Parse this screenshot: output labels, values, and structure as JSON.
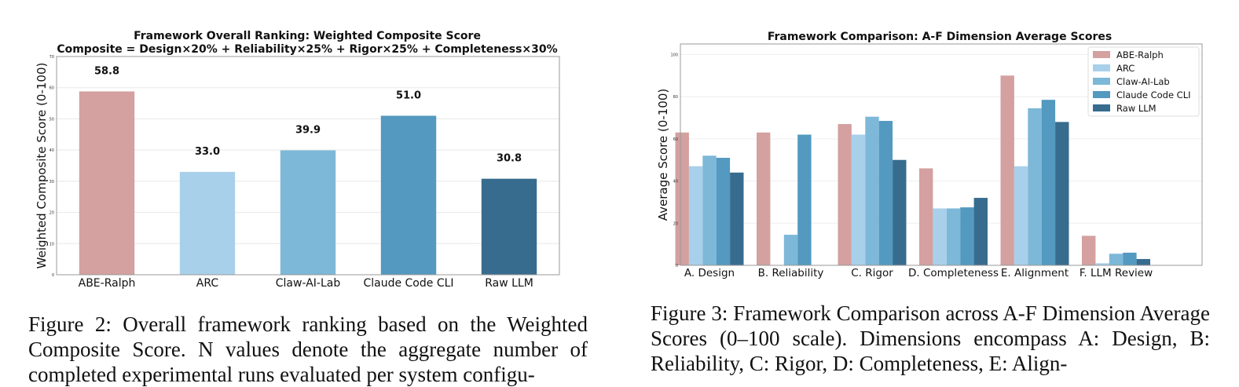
{
  "chart_data": [
    {
      "type": "bar",
      "title": "Framework Overall Ranking: Weighted Composite Score",
      "subtitle": "Composite = Design×20% + Reliability×25% + Rigor×25% + Completeness×30%",
      "xlabel": "",
      "ylabel": "Weighted Composite Score (0-100)",
      "ylim": [
        0,
        70
      ],
      "yticks": [
        "0",
        "10",
        "20",
        "30",
        "40",
        "50",
        "60",
        "70"
      ],
      "grid": "horizontal",
      "categories": [
        "ABE-Ralph",
        "ARC",
        "Claw-AI-Lab",
        "Claude Code CLI",
        "Raw LLM"
      ],
      "values": [
        58.8,
        33.0,
        39.9,
        51.0,
        30.8
      ],
      "value_labels": [
        "58.8",
        "33.0",
        "39.9",
        "51.0",
        "30.8"
      ],
      "colors": [
        "#d4a0a0",
        "#a9d0ea",
        "#7db8d8",
        "#5399c0",
        "#376c8e"
      ]
    },
    {
      "type": "bar",
      "title": "Framework Comparison: A-F Dimension Average Scores",
      "xlabel": "",
      "ylabel": "Average Score (0-100)",
      "ylim": [
        0,
        100
      ],
      "yticks": [
        "0",
        "20",
        "40",
        "60",
        "80",
        "100"
      ],
      "grid": "horizontal",
      "legend": "top-right",
      "categories": [
        "A. Design",
        "B. Reliability",
        "C. Rigor",
        "D. Completeness",
        "E. Alignment",
        "F. LLM Review"
      ],
      "series": [
        {
          "name": "ABE-Ralph",
          "color": "#d4a0a0",
          "values": [
            63,
            63,
            67,
            46,
            90,
            14
          ]
        },
        {
          "name": "ARC",
          "color": "#a9d0ea",
          "values": [
            47,
            0,
            62,
            27,
            47,
            1
          ]
        },
        {
          "name": "Claw-AI-Lab",
          "color": "#7db8d8",
          "values": [
            52,
            14.5,
            70.5,
            27,
            74.5,
            5.5
          ]
        },
        {
          "name": "Claude Code CLI",
          "color": "#5399c0",
          "values": [
            51,
            62,
            68.5,
            27.5,
            78.5,
            6
          ]
        },
        {
          "name": "Raw LLM",
          "color": "#376c8e",
          "values": [
            44,
            0,
            50,
            32,
            68,
            3
          ]
        }
      ]
    }
  ],
  "captions": {
    "fig2": "Figure 2: Overall framework ranking based on the Weighted Composite Score. N values denote the aggregate number of completed experimental runs evaluated per system configu-",
    "fig3": "Figure 3: Framework Comparison across A-F Dimension Average Scores (0–100 scale). Dimensions encompass A: Design, B: Reliability, C: Rigor, D: Completeness, E: Align-"
  }
}
